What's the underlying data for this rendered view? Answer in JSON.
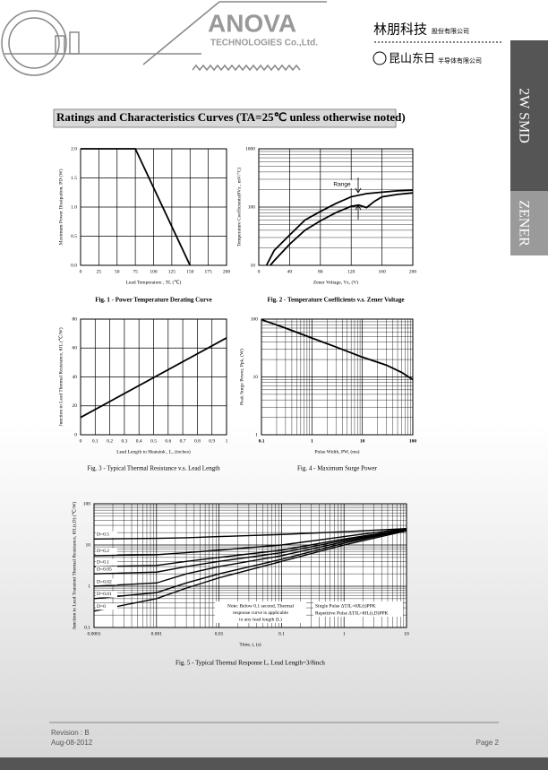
{
  "header": {
    "company": "ANOVA",
    "subtitle": "TECHNOLOGIES Co.,Ltd.",
    "cn_name": "林朋科技",
    "cn_suffix": "股份有限公司",
    "cn_name2": "昆山东日",
    "cn_suffix2": "半导体有限公司"
  },
  "side_tabs": [
    "2W SMD",
    "ZENER"
  ],
  "section_title": "Ratings and Characteristics Curves (TA=25℃ unless otherwise noted)",
  "footer": {
    "revision": "Revision : B",
    "date": "Aug-08-2012",
    "page": "Page 2"
  },
  "chart_data": [
    {
      "type": "line",
      "caption": "Fig. 1 - Power Temperature Derating Curve",
      "x_label": "Lead Temperature , TL (℃)",
      "y_label": "Maximum Power Dissipation, PD (W)",
      "x": [
        0,
        75,
        150
      ],
      "series": [
        {
          "color": "#000000",
          "values": [
            2,
            2,
            0
          ]
        }
      ],
      "xlim": [
        0,
        200
      ],
      "xticks": [
        0,
        25,
        50,
        75,
        100,
        125,
        150,
        175,
        200
      ],
      "ylim": [
        0,
        2
      ],
      "yticks": [
        {
          "value": 0,
          "label": "0.0"
        },
        {
          "value": 0.5,
          "label": "0.5"
        },
        {
          "value": 1,
          "label": "1.0"
        },
        {
          "value": 1.5,
          "label": "1.5"
        },
        {
          "value": 2,
          "label": "2.0"
        }
      ],
      "grid": true
    },
    {
      "type": "line",
      "caption": "Fig. 2 - Temperature Coefficients v.s. Zener Voltage",
      "x_label": "Zener Voltage, Vz, (V)",
      "y_label": "Temperature Coefficients(θVz , mV/°C)",
      "annotation": "Range",
      "ylog": true,
      "series": [
        {
          "color": "#000000",
          "x": [
            10,
            20,
            40,
            60,
            80,
            100,
            120,
            140,
            160,
            180,
            200
          ],
          "values": [
            10,
            18,
            33,
            60,
            84,
            115,
            150,
            170,
            180,
            190,
            195
          ]
        },
        {
          "color": "#000000",
          "x": [
            15,
            20,
            40,
            60,
            80,
            100,
            120,
            130,
            140,
            150,
            160,
            180,
            200
          ],
          "values": [
            10,
            12,
            23,
            40,
            58,
            80,
            103,
            108,
            98,
            125,
            150,
            165,
            175
          ]
        }
      ],
      "xlim": [
        0,
        200
      ],
      "xticks": [
        0,
        40,
        80,
        120,
        160,
        200
      ],
      "ylim": [
        10,
        1000
      ],
      "yticks": [
        10,
        100,
        1000
      ],
      "grid": true
    },
    {
      "type": "line",
      "caption": "Fig. 3 - Typical Thermal Resistance v.s. Lead Length",
      "x_label": "Lead Length to Heatsink , L, (inches)",
      "y_label": "Junction to Lead Thermal Resistance, θJL (℃/W)",
      "x": [
        0,
        1
      ],
      "series": [
        {
          "color": "#000000",
          "values": [
            12,
            67
          ]
        }
      ],
      "xlim": [
        0,
        1
      ],
      "xticks": [
        0,
        0.1,
        0.2,
        0.3,
        0.4,
        0.5,
        0.6,
        0.7,
        0.8,
        0.9,
        1
      ],
      "ylim": [
        0,
        80
      ],
      "yticks": [
        0,
        20,
        40,
        60,
        80
      ],
      "grid": true
    },
    {
      "type": "line",
      "caption": "Fig. 4 - Maximum Surge Power",
      "x_label": "Pulse Width, PW, (ms)",
      "y_label": "Peak Surge Power, Ppk, (W)",
      "xlog": true,
      "ylog": true,
      "x": [
        0.1,
        0.3,
        1,
        3,
        10,
        30,
        60,
        100
      ],
      "series": [
        {
          "color": "#000000",
          "values": [
            98,
            70,
            47,
            33,
            22,
            16,
            12,
            9
          ]
        }
      ],
      "xlim": [
        0.1,
        100
      ],
      "xticks": [
        0.1,
        1,
        10,
        100
      ],
      "ylim": [
        1,
        100
      ],
      "yticks": [
        1,
        10,
        100
      ],
      "grid": true
    },
    {
      "type": "line",
      "caption": "Fig. 5 - Typical Thermal Response L, Lead Length=3/8inch",
      "x_label": "Time, t, (s)",
      "y_label": "Junction to Lead Transient Thermal Resistance, θJL(t,D) (℃/W)",
      "xlog": true,
      "ylog": true,
      "note": [
        "Note: Below 0.1 second, Thermal",
        "response curve is applicable",
        "to any lead length (L)"
      ],
      "legend_text": [
        "Single Pulse ΔTJL=θJL(t)PPK",
        "Repetitive Pulse ΔTJL=θJL(t,D)PPK"
      ],
      "x": [
        0.0001,
        0.001,
        0.003,
        0.01,
        0.1,
        1,
        10
      ],
      "series": [
        {
          "name": "D=0.5",
          "color": "#000000",
          "values": [
            14,
            14.5,
            15,
            16,
            18,
            21,
            25
          ]
        },
        {
          "name": "D=0.2",
          "color": "#000000",
          "values": [
            5.5,
            5.8,
            6.5,
            7.5,
            10,
            16,
            25
          ]
        },
        {
          "name": "D=0.1",
          "color": "#000000",
          "values": [
            3,
            3.2,
            4,
            5,
            7.5,
            14,
            24
          ]
        },
        {
          "name": "D=0.05",
          "color": "#000000",
          "values": [
            2,
            2.2,
            3,
            4,
            6.5,
            13,
            24
          ]
        },
        {
          "name": "D=0.02",
          "color": "#000000",
          "values": [
            1,
            1.2,
            2,
            3,
            5.5,
            12,
            23
          ]
        },
        {
          "name": "D=0.01",
          "color": "#000000",
          "values": [
            0.5,
            0.7,
            1.2,
            2,
            4.5,
            11,
            23
          ]
        },
        {
          "name": "D=0",
          "color": "#000000",
          "values": [
            0.25,
            0.5,
            0.9,
            1.6,
            4,
            10,
            22
          ]
        }
      ],
      "xlim": [
        0.0001,
        10
      ],
      "xticks": [
        0.0001,
        0.001,
        0.01,
        0.1,
        1,
        10
      ],
      "ylim": [
        0.1,
        100
      ],
      "yticks": [
        0.1,
        1,
        10,
        100
      ],
      "grid": true
    }
  ]
}
